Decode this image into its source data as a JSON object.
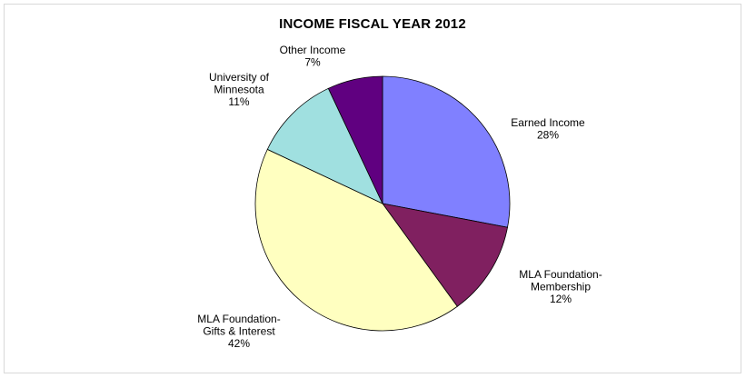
{
  "chart_data": {
    "type": "pie",
    "title": "INCOME FISCAL YEAR 2012",
    "start_angle_deg": 0,
    "direction": "clockwise",
    "slices": [
      {
        "label_lines": [
          "Earned Income"
        ],
        "pct_label": "28%",
        "value": 28,
        "color": "#8080ff"
      },
      {
        "label_lines": [
          "MLA Foundation-",
          "Membership"
        ],
        "pct_label": "12%",
        "value": 12,
        "color": "#802060"
      },
      {
        "label_lines": [
          "MLA Foundation-",
          "Gifts & Interest"
        ],
        "pct_label": "42%",
        "value": 42,
        "color": "#ffffc0"
      },
      {
        "label_lines": [
          "University of",
          "Minnesota"
        ],
        "pct_label": "11%",
        "value": 11,
        "color": "#a0e0e0"
      },
      {
        "label_lines": [
          "Other Income"
        ],
        "pct_label": "7%",
        "value": 7,
        "color": "#600080"
      }
    ]
  }
}
